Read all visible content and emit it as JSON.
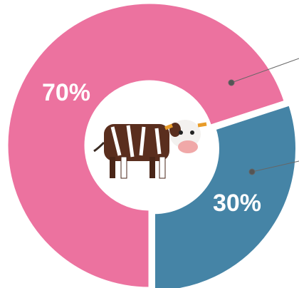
{
  "chart_data": {
    "type": "donut",
    "values": [
      70,
      30
    ],
    "value_labels": [
      "70%",
      "30%"
    ],
    "colors": [
      "#ec729f",
      "#4584a6"
    ]
  }
}
